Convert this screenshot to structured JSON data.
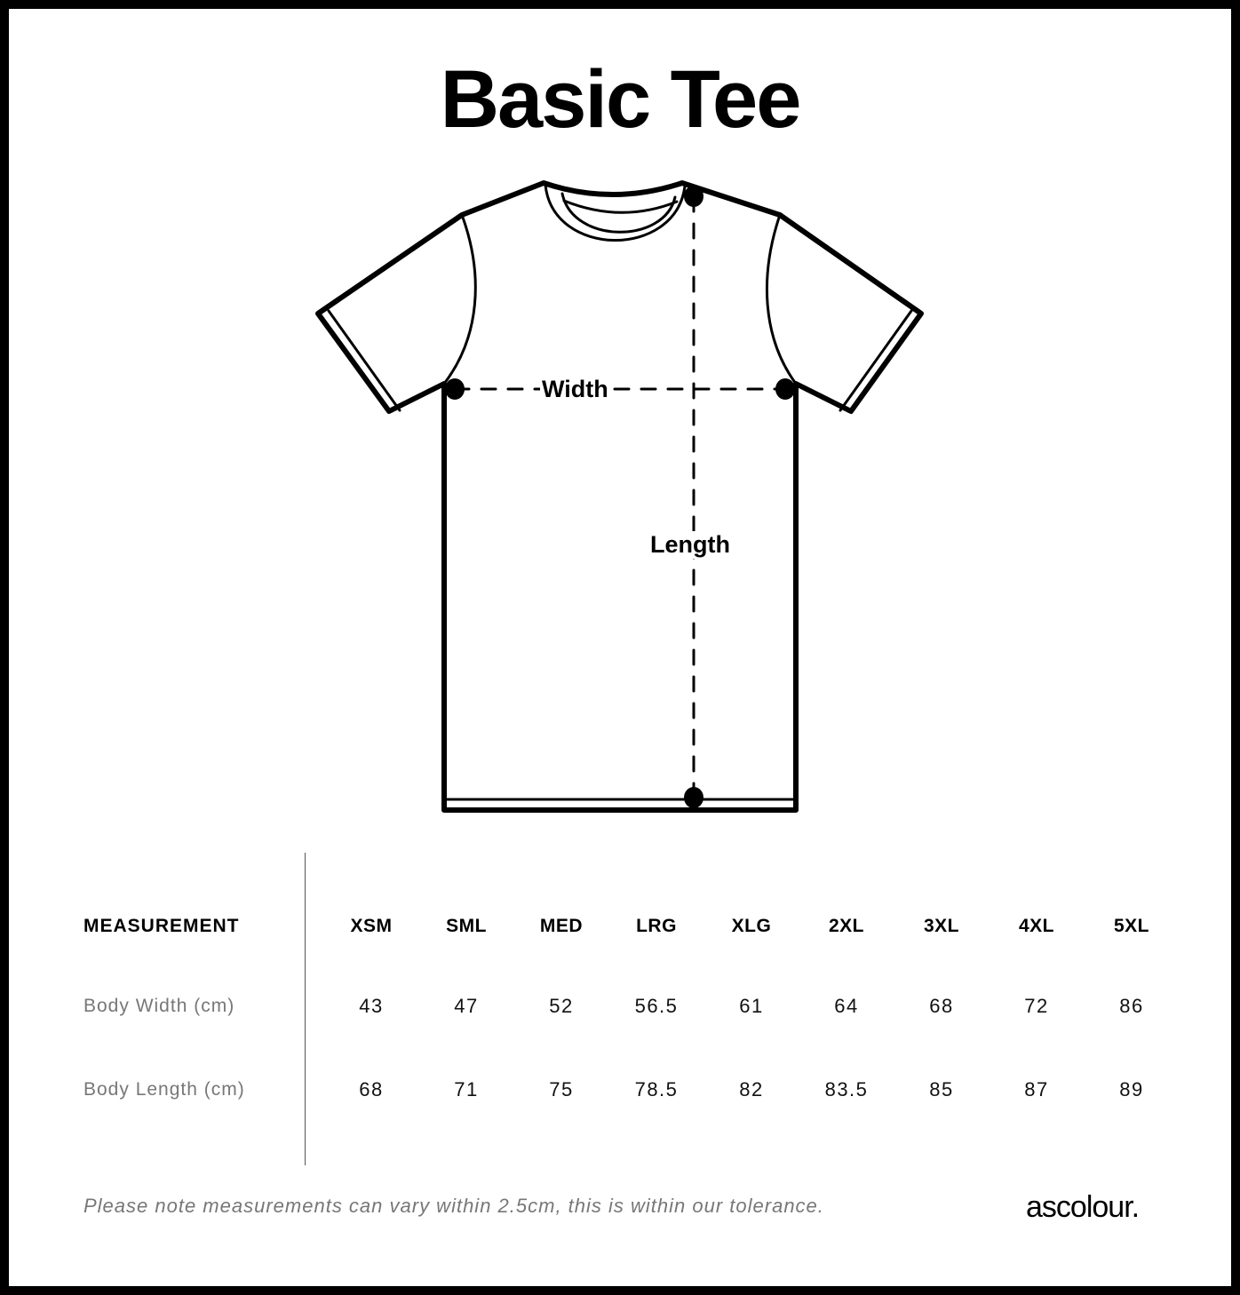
{
  "title": "Basic Tee",
  "diagram": {
    "width_label": "Width",
    "length_label": "Length"
  },
  "table": {
    "header_label": "MEASUREMENT",
    "sizes": [
      "XSM",
      "SML",
      "MED",
      "LRG",
      "XLG",
      "2XL",
      "3XL",
      "4XL",
      "5XL"
    ],
    "rows": [
      {
        "label": "Body Width (cm)",
        "values": [
          "43",
          "47",
          "52",
          "56.5",
          "61",
          "64",
          "68",
          "72",
          "86"
        ]
      },
      {
        "label": "Body Length (cm)",
        "values": [
          "68",
          "71",
          "75",
          "78.5",
          "82",
          "83.5",
          "85",
          "87",
          "89"
        ]
      }
    ]
  },
  "note": "Please note measurements can vary within 2.5cm, this is within our tolerance.",
  "brand": "ascolour."
}
